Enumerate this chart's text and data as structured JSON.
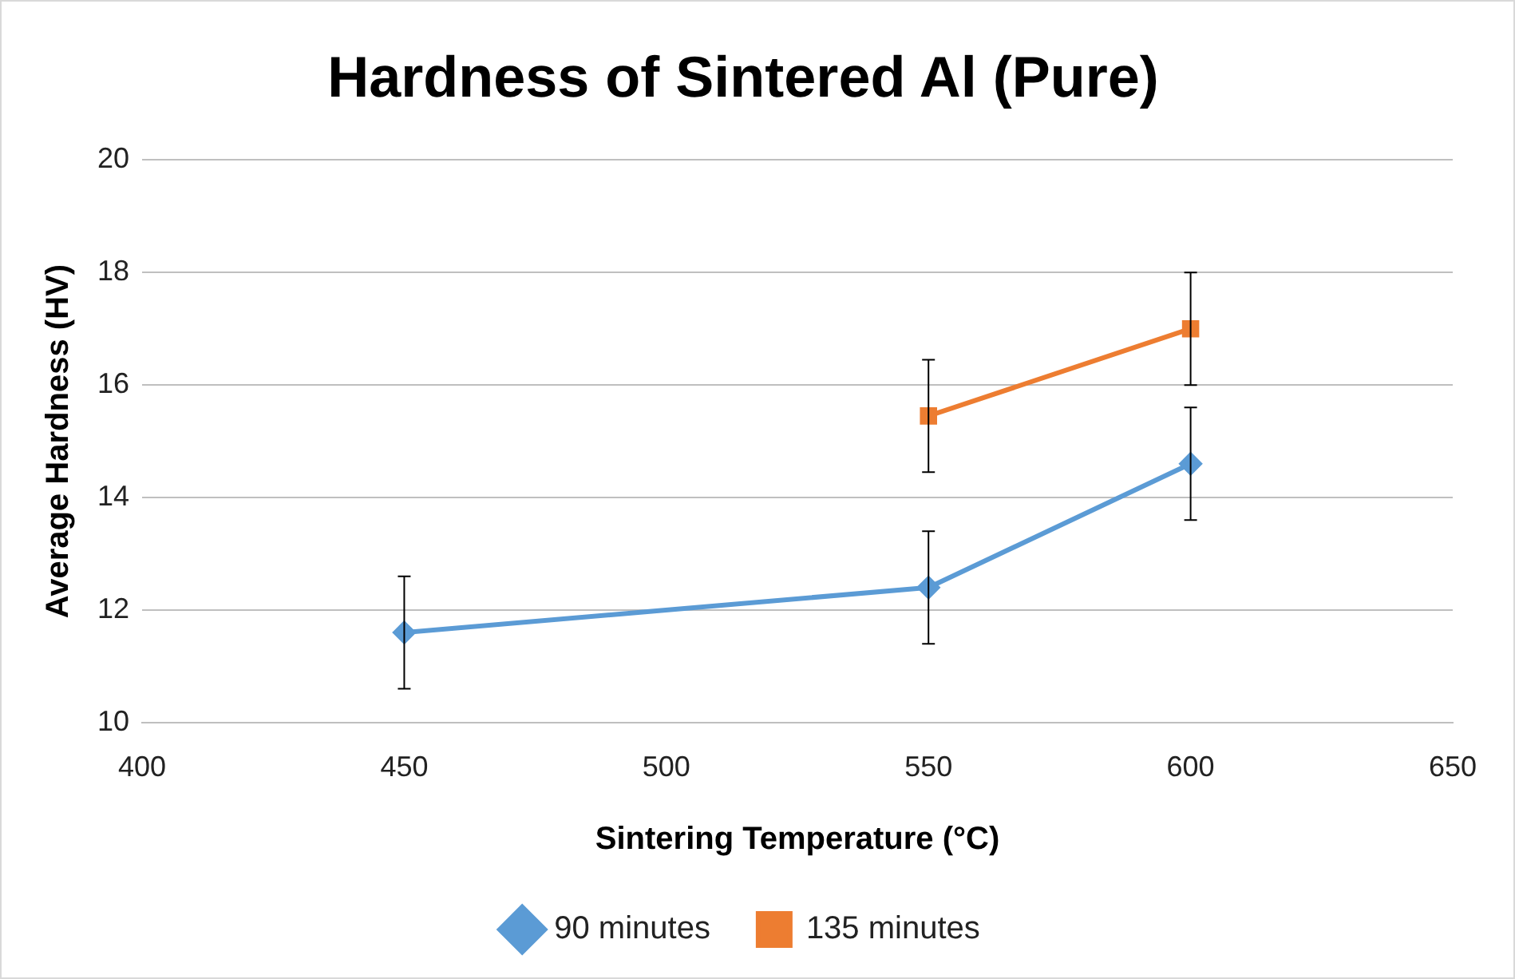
{
  "chart_data": {
    "type": "line",
    "title": "Hardness of Sintered Al (Pure)",
    "xlabel": "Sintering Temperature (°C)",
    "ylabel": "Average Hardness (HV)",
    "xlim": [
      400,
      650
    ],
    "xticks": [
      400,
      450,
      500,
      550,
      600,
      650
    ],
    "ylim": [
      10,
      20
    ],
    "yticks": [
      10,
      12,
      14,
      16,
      18,
      20
    ],
    "grid": "y",
    "legend": "bottom",
    "series": [
      {
        "name": "90 minutes",
        "color": "#5b9bd5",
        "marker": "diamond",
        "x": [
          450,
          550,
          600
        ],
        "values": [
          11.6,
          12.4,
          14.6
        ],
        "errors": [
          1,
          1,
          1
        ]
      },
      {
        "name": "135 minutes",
        "color": "#ed7d31",
        "marker": "square",
        "x": [
          550,
          600
        ],
        "values": [
          15.45,
          17.0
        ],
        "errors": [
          1,
          1
        ]
      }
    ]
  }
}
